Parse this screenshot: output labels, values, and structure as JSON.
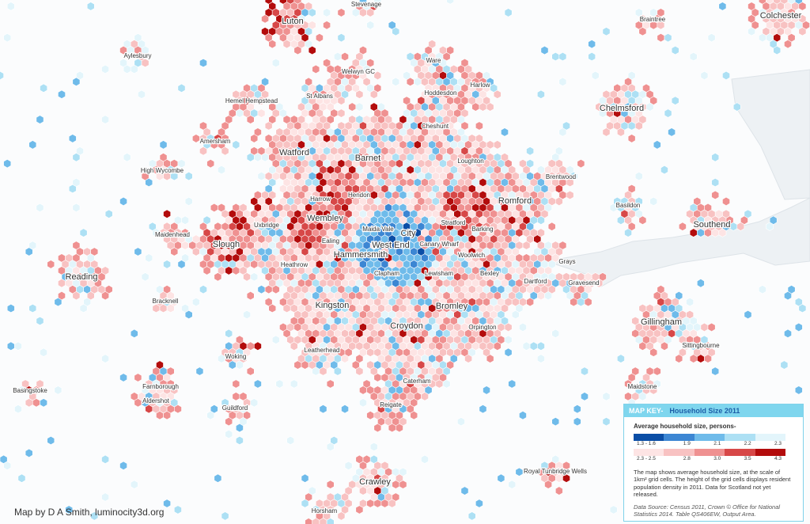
{
  "places": [
    "Luton",
    "Stevenage",
    "Braintree",
    "Colchester",
    "Aylesbury",
    "Ware",
    "Welwyn GC",
    "Harlow",
    "Hemel Hempstead",
    "St Albans",
    "Hoddesdon",
    "Chelmsford",
    "Cheshunt",
    "Amersham",
    "Watford",
    "Barnet",
    "Loughton",
    "High Wycombe",
    "Brentwood",
    "Harrow",
    "Hendon",
    "Romford",
    "Basildon",
    "Wembley",
    "Uxbridge",
    "Maida Vale",
    "City",
    "Stratford",
    "Barking",
    "Southend",
    "Maidenhead",
    "Ealing",
    "West End",
    "Slough",
    "Canary Wharf",
    "Hammersmith",
    "Woolwich",
    "Heathrow",
    "Grays",
    "Reading",
    "Clapham",
    "Lewisham",
    "Bexley",
    "Dartford",
    "Gravesend",
    "Bracknell",
    "Kingston",
    "Bromley",
    "Gillingham",
    "Croydon",
    "Orpington",
    "Sittingbourne",
    "Woking",
    "Leatherhead",
    "Caterham",
    "Basingstoke",
    "Farnborough",
    "Maidstone",
    "Aldershot",
    "Reigate",
    "Guildford",
    "Royal Tunbridge Wells",
    "Crawley",
    "Horsham"
  ],
  "map_key": {
    "heading": "MAP KEY-",
    "title": "Household Size 2011",
    "subtitle": "Average household size, persons-",
    "scale_rows": [
      [
        {
          "label": "1.3 - 1.6",
          "color": "#0b4ea6"
        },
        {
          "label": "1.9",
          "color": "#3c86d3"
        },
        {
          "label": "2.1",
          "color": "#6fbbea"
        },
        {
          "label": "2.2",
          "color": "#ade0f4"
        },
        {
          "label": "2.3",
          "color": "#e3f5fb"
        }
      ],
      [
        {
          "label": "2.3 - 2.5",
          "color": "#fde4e4"
        },
        {
          "label": "2.8",
          "color": "#f8c2c2"
        },
        {
          "label": "3.0",
          "color": "#ef9191"
        },
        {
          "label": "3.5",
          "color": "#d74848"
        },
        {
          "label": "4.3",
          "color": "#b30c0c"
        }
      ]
    ],
    "description": "The map shows average household size, at the scale of 1km² grid cells. The height of the grid cells displays resident population density in 2011. Data for Scotland not yet released.",
    "source": "Data Source: Census 2011, Crown © Office for National Statistics 2014. Table QS406EW, Output Area."
  },
  "credit": "Map by D A Smith, luminocity3d.org"
}
